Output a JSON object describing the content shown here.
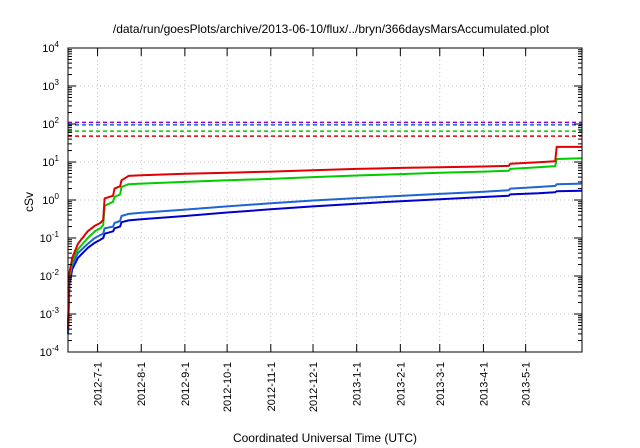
{
  "chart_data": {
    "type": "line",
    "title": "/data/run/goesPlots/archive/2013-06-10/flux/../bryn/366daysMarsAccumulated.plot",
    "xlabel": "Coordinated Universal Time (UTC)",
    "ylabel": "cSv",
    "y_scale": "log",
    "ylim": [
      0.0001,
      10000
    ],
    "xlim": [
      "2012-06-10",
      "2013-06-10"
    ],
    "grid": true,
    "x_ticks": [
      "2012-7-1",
      "2012-8-1",
      "2012-9-1",
      "2012-10-1",
      "2012-11-1",
      "2012-12-1",
      "2013-1-1",
      "2013-2-1",
      "2013-3-1",
      "2013-4-1",
      "2013-5-1"
    ],
    "y_ticks": [
      {
        "value": 0.0001,
        "base": "10",
        "exp": "-4"
      },
      {
        "value": 0.001,
        "base": "10",
        "exp": "-3"
      },
      {
        "value": 0.01,
        "base": "10",
        "exp": "-2"
      },
      {
        "value": 0.1,
        "base": "10",
        "exp": "-1"
      },
      {
        "value": 1,
        "base": "10",
        "exp": "0"
      },
      {
        "value": 10,
        "base": "10",
        "exp": "1"
      },
      {
        "value": 100,
        "base": "10",
        "exp": "2"
      },
      {
        "value": 1000,
        "base": "10",
        "exp": "3"
      },
      {
        "value": 10000,
        "base": "10",
        "exp": "4"
      }
    ],
    "thresholds": [
      {
        "value": 110,
        "color": "#9400d3"
      },
      {
        "value": 95,
        "color": "#1e64d2"
      },
      {
        "value": 65,
        "color": "#00cc00"
      },
      {
        "value": 48,
        "color": "#e00000"
      }
    ],
    "series": [
      {
        "color": "#e00000",
        "points": [
          [
            "2012-06-10",
            0.0004
          ],
          [
            "2012-06-11",
            0.012
          ],
          [
            "2012-06-13",
            0.03
          ],
          [
            "2012-06-17",
            0.07
          ],
          [
            "2012-06-24",
            0.15
          ],
          [
            "2012-06-29",
            0.21
          ],
          [
            "2012-07-03",
            0.25
          ],
          [
            "2012-07-05",
            0.3
          ],
          [
            "2012-07-06",
            1.1
          ],
          [
            "2012-07-12",
            1.3
          ],
          [
            "2012-07-13",
            2.0
          ],
          [
            "2012-07-17",
            2.3
          ],
          [
            "2012-07-18",
            3.3
          ],
          [
            "2012-07-23",
            4.3
          ],
          [
            "2012-08-01",
            4.5
          ],
          [
            "2012-09-01",
            4.9
          ],
          [
            "2012-10-01",
            5.2
          ],
          [
            "2012-11-01",
            5.6
          ],
          [
            "2012-12-01",
            6.1
          ],
          [
            "2013-01-01",
            6.6
          ],
          [
            "2013-02-01",
            7.0
          ],
          [
            "2013-03-01",
            7.3
          ],
          [
            "2013-04-01",
            7.6
          ],
          [
            "2013-04-19",
            7.9
          ],
          [
            "2013-04-20",
            9.0
          ],
          [
            "2013-05-10",
            9.8
          ],
          [
            "2013-05-22",
            10.5
          ],
          [
            "2013-05-23",
            25
          ],
          [
            "2013-06-10",
            25
          ]
        ]
      },
      {
        "color": "#00cc00",
        "points": [
          [
            "2012-06-10",
            0.0004
          ],
          [
            "2012-06-11",
            0.01
          ],
          [
            "2012-06-13",
            0.025
          ],
          [
            "2012-06-17",
            0.05
          ],
          [
            "2012-06-24",
            0.1
          ],
          [
            "2012-06-29",
            0.15
          ],
          [
            "2012-07-03",
            0.18
          ],
          [
            "2012-07-05",
            0.22
          ],
          [
            "2012-07-06",
            0.7
          ],
          [
            "2012-07-12",
            0.9
          ],
          [
            "2012-07-13",
            1.2
          ],
          [
            "2012-07-17",
            1.4
          ],
          [
            "2012-07-18",
            2.2
          ],
          [
            "2012-07-23",
            2.6
          ],
          [
            "2012-08-01",
            2.7
          ],
          [
            "2012-09-01",
            3.0
          ],
          [
            "2012-10-01",
            3.3
          ],
          [
            "2012-11-01",
            3.6
          ],
          [
            "2012-12-01",
            4.0
          ],
          [
            "2013-01-01",
            4.4
          ],
          [
            "2013-02-01",
            4.8
          ],
          [
            "2013-03-01",
            5.2
          ],
          [
            "2013-04-01",
            5.6
          ],
          [
            "2013-04-19",
            5.9
          ],
          [
            "2013-04-20",
            6.6
          ],
          [
            "2013-05-10",
            7.3
          ],
          [
            "2013-05-22",
            7.8
          ],
          [
            "2013-05-23",
            12
          ],
          [
            "2013-06-10",
            12.5
          ]
        ]
      },
      {
        "color": "#1e64d2",
        "points": [
          [
            "2012-06-10",
            0.0003
          ],
          [
            "2012-06-11",
            0.008
          ],
          [
            "2012-06-13",
            0.02
          ],
          [
            "2012-06-17",
            0.04
          ],
          [
            "2012-06-24",
            0.07
          ],
          [
            "2012-06-29",
            0.1
          ],
          [
            "2012-07-03",
            0.12
          ],
          [
            "2012-07-05",
            0.13
          ],
          [
            "2012-07-06",
            0.18
          ],
          [
            "2012-07-12",
            0.2
          ],
          [
            "2012-07-13",
            0.25
          ],
          [
            "2012-07-17",
            0.28
          ],
          [
            "2012-07-18",
            0.38
          ],
          [
            "2012-07-23",
            0.43
          ],
          [
            "2012-08-01",
            0.46
          ],
          [
            "2012-09-01",
            0.56
          ],
          [
            "2012-10-01",
            0.68
          ],
          [
            "2012-11-01",
            0.82
          ],
          [
            "2012-12-01",
            0.97
          ],
          [
            "2013-01-01",
            1.12
          ],
          [
            "2013-02-01",
            1.28
          ],
          [
            "2013-03-01",
            1.45
          ],
          [
            "2013-04-01",
            1.65
          ],
          [
            "2013-04-19",
            1.8
          ],
          [
            "2013-04-20",
            2.0
          ],
          [
            "2013-05-10",
            2.2
          ],
          [
            "2013-05-22",
            2.35
          ],
          [
            "2013-05-23",
            2.6
          ],
          [
            "2013-06-10",
            2.7
          ]
        ]
      },
      {
        "color": "#0000cd",
        "points": [
          [
            "2012-06-10",
            0.0003
          ],
          [
            "2012-06-11",
            0.006
          ],
          [
            "2012-06-13",
            0.015
          ],
          [
            "2012-06-17",
            0.03
          ],
          [
            "2012-06-24",
            0.055
          ],
          [
            "2012-06-29",
            0.075
          ],
          [
            "2012-07-03",
            0.09
          ],
          [
            "2012-07-05",
            0.1
          ],
          [
            "2012-07-06",
            0.13
          ],
          [
            "2012-07-12",
            0.15
          ],
          [
            "2012-07-13",
            0.18
          ],
          [
            "2012-07-17",
            0.2
          ],
          [
            "2012-07-18",
            0.26
          ],
          [
            "2012-07-23",
            0.29
          ],
          [
            "2012-08-01",
            0.31
          ],
          [
            "2012-09-01",
            0.38
          ],
          [
            "2012-10-01",
            0.47
          ],
          [
            "2012-11-01",
            0.57
          ],
          [
            "2012-12-01",
            0.68
          ],
          [
            "2013-01-01",
            0.8
          ],
          [
            "2013-02-01",
            0.93
          ],
          [
            "2013-03-01",
            1.05
          ],
          [
            "2013-04-01",
            1.2
          ],
          [
            "2013-04-19",
            1.3
          ],
          [
            "2013-04-20",
            1.4
          ],
          [
            "2013-05-10",
            1.5
          ],
          [
            "2013-05-22",
            1.6
          ],
          [
            "2013-05-23",
            1.7
          ],
          [
            "2013-06-10",
            1.75
          ]
        ]
      }
    ]
  }
}
